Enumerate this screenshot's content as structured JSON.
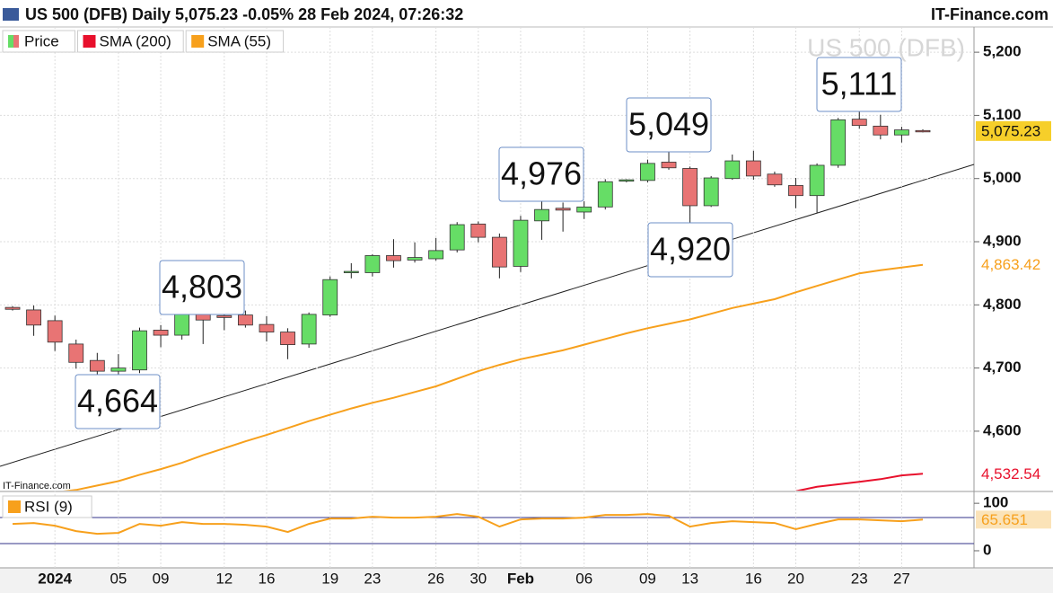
{
  "chart_data": [
    {
      "type": "candlestick",
      "title": "US 500 (DFB) Daily 5,075.23 -0.05% 28 Feb 2024, 07:26:32",
      "source": "IT-Finance.com",
      "watermark": "US 500 (DFB)",
      "credit": "IT-Finance.com",
      "categories": [
        null,
        null,
        "2024",
        null,
        null,
        "05",
        null,
        "09",
        null,
        null,
        "12",
        null,
        "16",
        null,
        null,
        "19",
        null,
        "23",
        null,
        null,
        "26",
        null,
        "30",
        null,
        "Feb",
        null,
        null,
        "06",
        null,
        null,
        "09",
        null,
        "13",
        null,
        null,
        "16",
        null,
        "20",
        null,
        null,
        "23",
        null,
        "27",
        null
      ],
      "ylim": [
        4506,
        5240
      ],
      "yticks": [
        {
          "value": 4600,
          "label": "4,600"
        },
        {
          "value": 4700,
          "label": "4,700"
        },
        {
          "value": 4800,
          "label": "4,800"
        },
        {
          "value": 4900,
          "label": "4,900"
        },
        {
          "value": 5000,
          "label": "5,000"
        },
        {
          "value": 5100,
          "label": "5,100"
        },
        {
          "value": 5200,
          "label": "5,200"
        }
      ],
      "grid": true,
      "series": [
        {
          "name": "Price",
          "up_color": "#66dd66",
          "down_color": "#e87474",
          "last_label": "5,075.23",
          "open": [
            4796,
            4792,
            4775,
            4738,
            4712,
            4695,
            4697,
            4760,
            4752,
            4795,
            4783,
            4784,
            4769,
            4757,
            4738,
            4784,
            4852,
            4851,
            4878,
            4871,
            4873,
            4887,
            4928,
            4907,
            4861,
            4933,
            4953,
            4947,
            4955,
            4997,
            4997,
            5026,
            5016,
            4957,
            5000,
            5028,
            5007,
            4989,
            4973,
            5021,
            5094,
            5083,
            5069,
            5076
          ],
          "high": [
            4798,
            4799,
            4783,
            4745,
            4724,
            4722,
            4764,
            4768,
            4798,
            4803,
            4792,
            4791,
            4782,
            4763,
            4788,
            4845,
            4866,
            4880,
            4904,
            4899,
            4906,
            4931,
            4932,
            4913,
            4941,
            4976,
            4962,
            4964,
            4999,
            4999,
            5030,
            5049,
            5019,
            5004,
            5038,
            5044,
            5011,
            5001,
            5024,
            5096,
            5111,
            5101,
            5082,
            5078
          ],
          "low": [
            4791,
            4751,
            4727,
            4699,
            4690,
            4664,
            4692,
            4733,
            4745,
            4738,
            4760,
            4764,
            4742,
            4714,
            4732,
            4781,
            4842,
            4845,
            4859,
            4867,
            4870,
            4883,
            4899,
            4842,
            4852,
            4903,
            4916,
            4936,
            4951,
            4994,
            4994,
            5014,
            4920,
            4955,
            4998,
            4998,
            4987,
            4953,
            4946,
            5017,
            5079,
            5062,
            5057,
            5073
          ],
          "close": [
            4793,
            4768,
            4741,
            4709,
            4695,
            4700,
            4759,
            4752,
            4797,
            4776,
            4780,
            4768,
            4757,
            4737,
            4785,
            4840,
            4853,
            4878,
            4870,
            4875,
            4886,
            4927,
            4907,
            4860,
            4934,
            4951,
            4950,
            4955,
            4995,
            4998,
            5024,
            5017,
            4957,
            5001,
            5028,
            5004,
            4990,
            4973,
            5021,
            5093,
            5084,
            5069,
            5077,
            5075.23
          ]
        },
        {
          "name": "SMA (200)",
          "color": "#e8102c",
          "last_label": "4,532.54",
          "values": [
            null,
            null,
            null,
            null,
            null,
            null,
            null,
            null,
            null,
            null,
            null,
            null,
            null,
            null,
            null,
            null,
            null,
            null,
            null,
            null,
            null,
            null,
            null,
            null,
            null,
            null,
            null,
            null,
            null,
            null,
            null,
            null,
            null,
            null,
            null,
            null,
            null,
            4505,
            4512,
            4516,
            4520,
            4524,
            4530,
            4532.54
          ]
        },
        {
          "name": "SMA (55)",
          "color": "#f7a01c",
          "last_label": "4,863.42",
          "values": [
            null,
            null,
            4503,
            4507,
            4514,
            4521,
            4531,
            4540,
            4550,
            4562,
            4573,
            4584,
            4594,
            4605,
            4616,
            4626,
            4636,
            4645,
            4653,
            4662,
            4671,
            4683,
            4695,
            4705,
            4714,
            4721,
            4728,
            4737,
            4746,
            4755,
            4763,
            4770,
            4777,
            4786,
            4795,
            4802,
            4809,
            4820,
            4830,
            4840,
            4850,
            4855,
            4859,
            4863.42
          ]
        }
      ],
      "annotations": [
        "4,664",
        "4,803",
        "4,976",
        "5,049",
        "4,920",
        "5,111"
      ]
    },
    {
      "type": "line",
      "ylim": [
        -36,
        123
      ],
      "yticks": [
        0,
        100
      ],
      "series": [
        {
          "name": "RSI (9)",
          "color": "#f7a01c",
          "last_label": "65.651",
          "values": [
            56.6,
            58.5,
            52.8,
            41.5,
            35.8,
            37.7,
            56.6,
            52.8,
            60.4,
            56.6,
            56.6,
            54.7,
            50.9,
            39.6,
            56.6,
            67.9,
            67.9,
            71.7,
            69.8,
            69.8,
            71.7,
            77.4,
            71.7,
            50.9,
            66.0,
            67.9,
            67.9,
            69.8,
            75.5,
            75.5,
            77.4,
            73.6,
            50.9,
            58.5,
            62.3,
            60.4,
            58.5,
            45.3,
            56.6,
            66.0,
            66.0,
            64.2,
            62.3,
            65.651
          ]
        }
      ]
    }
  ]
}
